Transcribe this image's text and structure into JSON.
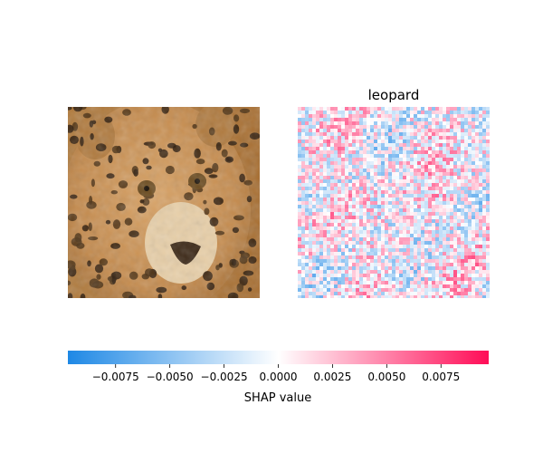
{
  "chart_data": {
    "type": "heatmap",
    "panels": [
      {
        "name": "input-image",
        "title": "",
        "content": "photo of a leopard face (original input image)"
      },
      {
        "name": "shap-map",
        "title": "leopard",
        "content": "SHAP attribution heatmap overlaid on faint grayscale image"
      }
    ],
    "colorbar": {
      "label": "SHAP value",
      "range": [
        -0.0097,
        0.0097
      ],
      "ticks": [
        -0.0075,
        -0.005,
        -0.0025,
        0.0,
        0.0025,
        0.005,
        0.0075
      ],
      "tick_labels": [
        "−0.0075",
        "−0.0050",
        "−0.0025",
        "0.0000",
        "0.0025",
        "0.0050",
        "0.0075"
      ],
      "colors": {
        "negative": "#1e88e5",
        "zero": "#ffffff",
        "positive": "#ff0d57"
      }
    },
    "grid": false
  }
}
